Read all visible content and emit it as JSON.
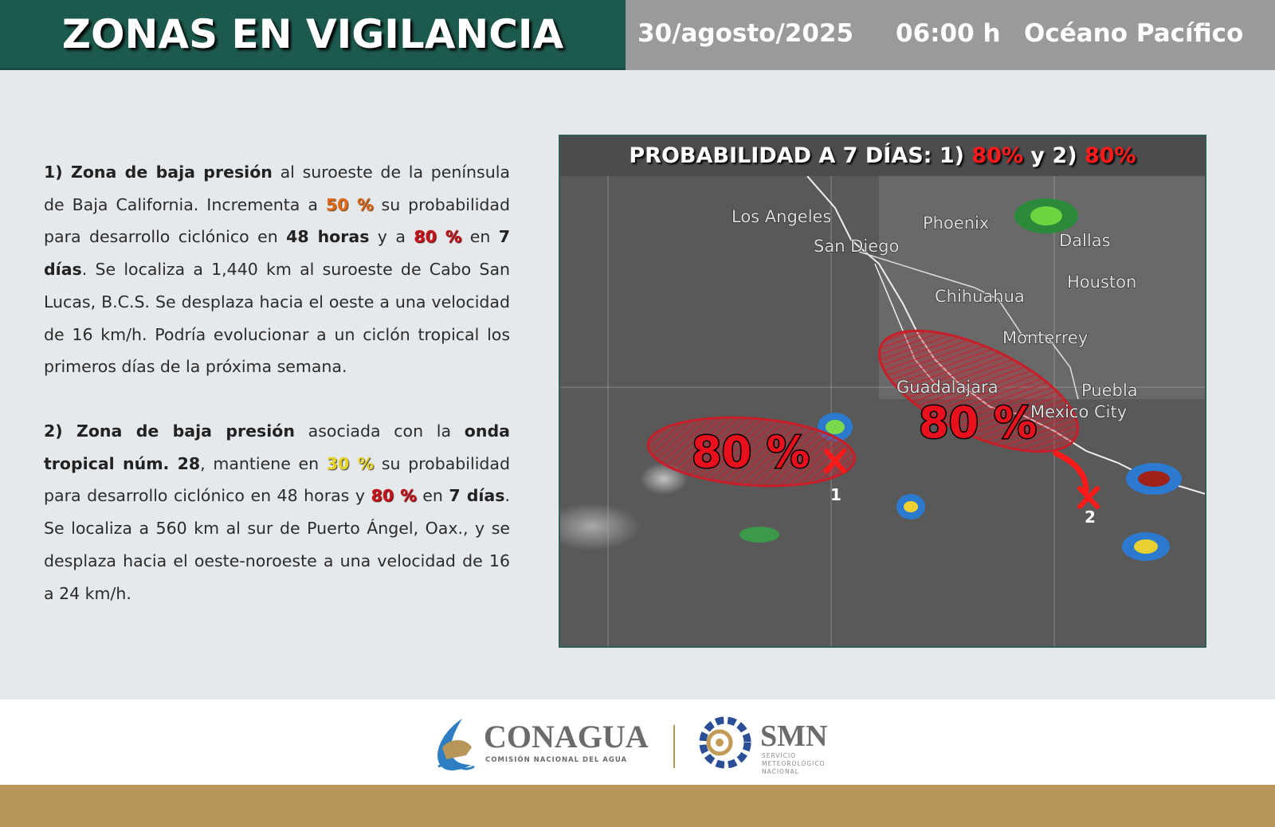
{
  "header": {
    "title": "ZONAS EN VIGILANCIA",
    "date": "30/agosto/2025",
    "time": "06:00 h",
    "region": "Océano Pacífico"
  },
  "colors": {
    "header_green": "#1d5a4e",
    "header_gray": "#999a9c",
    "orange": "#e0691a",
    "red": "#c3151b",
    "yellow": "#e8d31c",
    "gold": "#b8965a"
  },
  "paragraphs": [
    [
      {
        "t": "1) Zona de baja presión",
        "s": "b"
      },
      {
        "t": " al suroeste de la península de Baja California. Incrementa a "
      },
      {
        "t": "50 %",
        "s": "c-orange"
      },
      {
        "t": " su probabilidad para desarrollo ciclónico en "
      },
      {
        "t": "48 horas",
        "s": "b"
      },
      {
        "t": " y a "
      },
      {
        "t": "80 %",
        "s": "c-red"
      },
      {
        "t": " en "
      },
      {
        "t": "7 días",
        "s": "b"
      },
      {
        "t": ". Se localiza a 1,440 km al suroeste de Cabo San Lucas, B.C.S. Se desplaza hacia el oeste a una velocidad de 16 km/h. Podría evolucionar a un ciclón tropical los primeros días de la próxima semana."
      }
    ],
    [
      {
        "t": "2) Zona de baja presión",
        "s": "b"
      },
      {
        "t": " asociada con la "
      },
      {
        "t": "onda tropical núm. 28",
        "s": "b"
      },
      {
        "t": ", mantiene en "
      },
      {
        "t": "30 %",
        "s": "c-yellow"
      },
      {
        "t": " su probabilidad para desarrollo ciclónico en 48 horas y "
      },
      {
        "t": "80 %",
        "s": "c-red"
      },
      {
        "t": " en "
      },
      {
        "t": "7 días",
        "s": "b"
      },
      {
        "t": ". Se localiza a 560 km al sur de Puerto Ángel, Oax., y se desplaza hacia el oeste-noroeste a una velocidad de 16 a 24 km/h."
      }
    ]
  ],
  "map": {
    "title_prefix": "PROBABILIDAD A 7 DÍAS: 1) ",
    "p1": "80%",
    "mid": " y 2) ",
    "p2": "80%",
    "cities": [
      "Los Angeles",
      "San Diego",
      "Phoenix",
      "Dallas",
      "Houston",
      "Chihuahua",
      "Monterrey",
      "Guadalajara",
      "Puebla",
      "Mexico City"
    ],
    "zones": [
      {
        "id": "1",
        "probability": "80 %"
      },
      {
        "id": "2",
        "probability": "80 %"
      }
    ]
  },
  "footer": {
    "conagua": "CONAGUA",
    "conagua_sub": "COMISIÓN NACIONAL DEL AGUA",
    "smn": "SMN",
    "smn_sub1": "SERVICIO",
    "smn_sub2": "METEOROLÓGICO",
    "smn_sub3": "NACIONAL"
  }
}
